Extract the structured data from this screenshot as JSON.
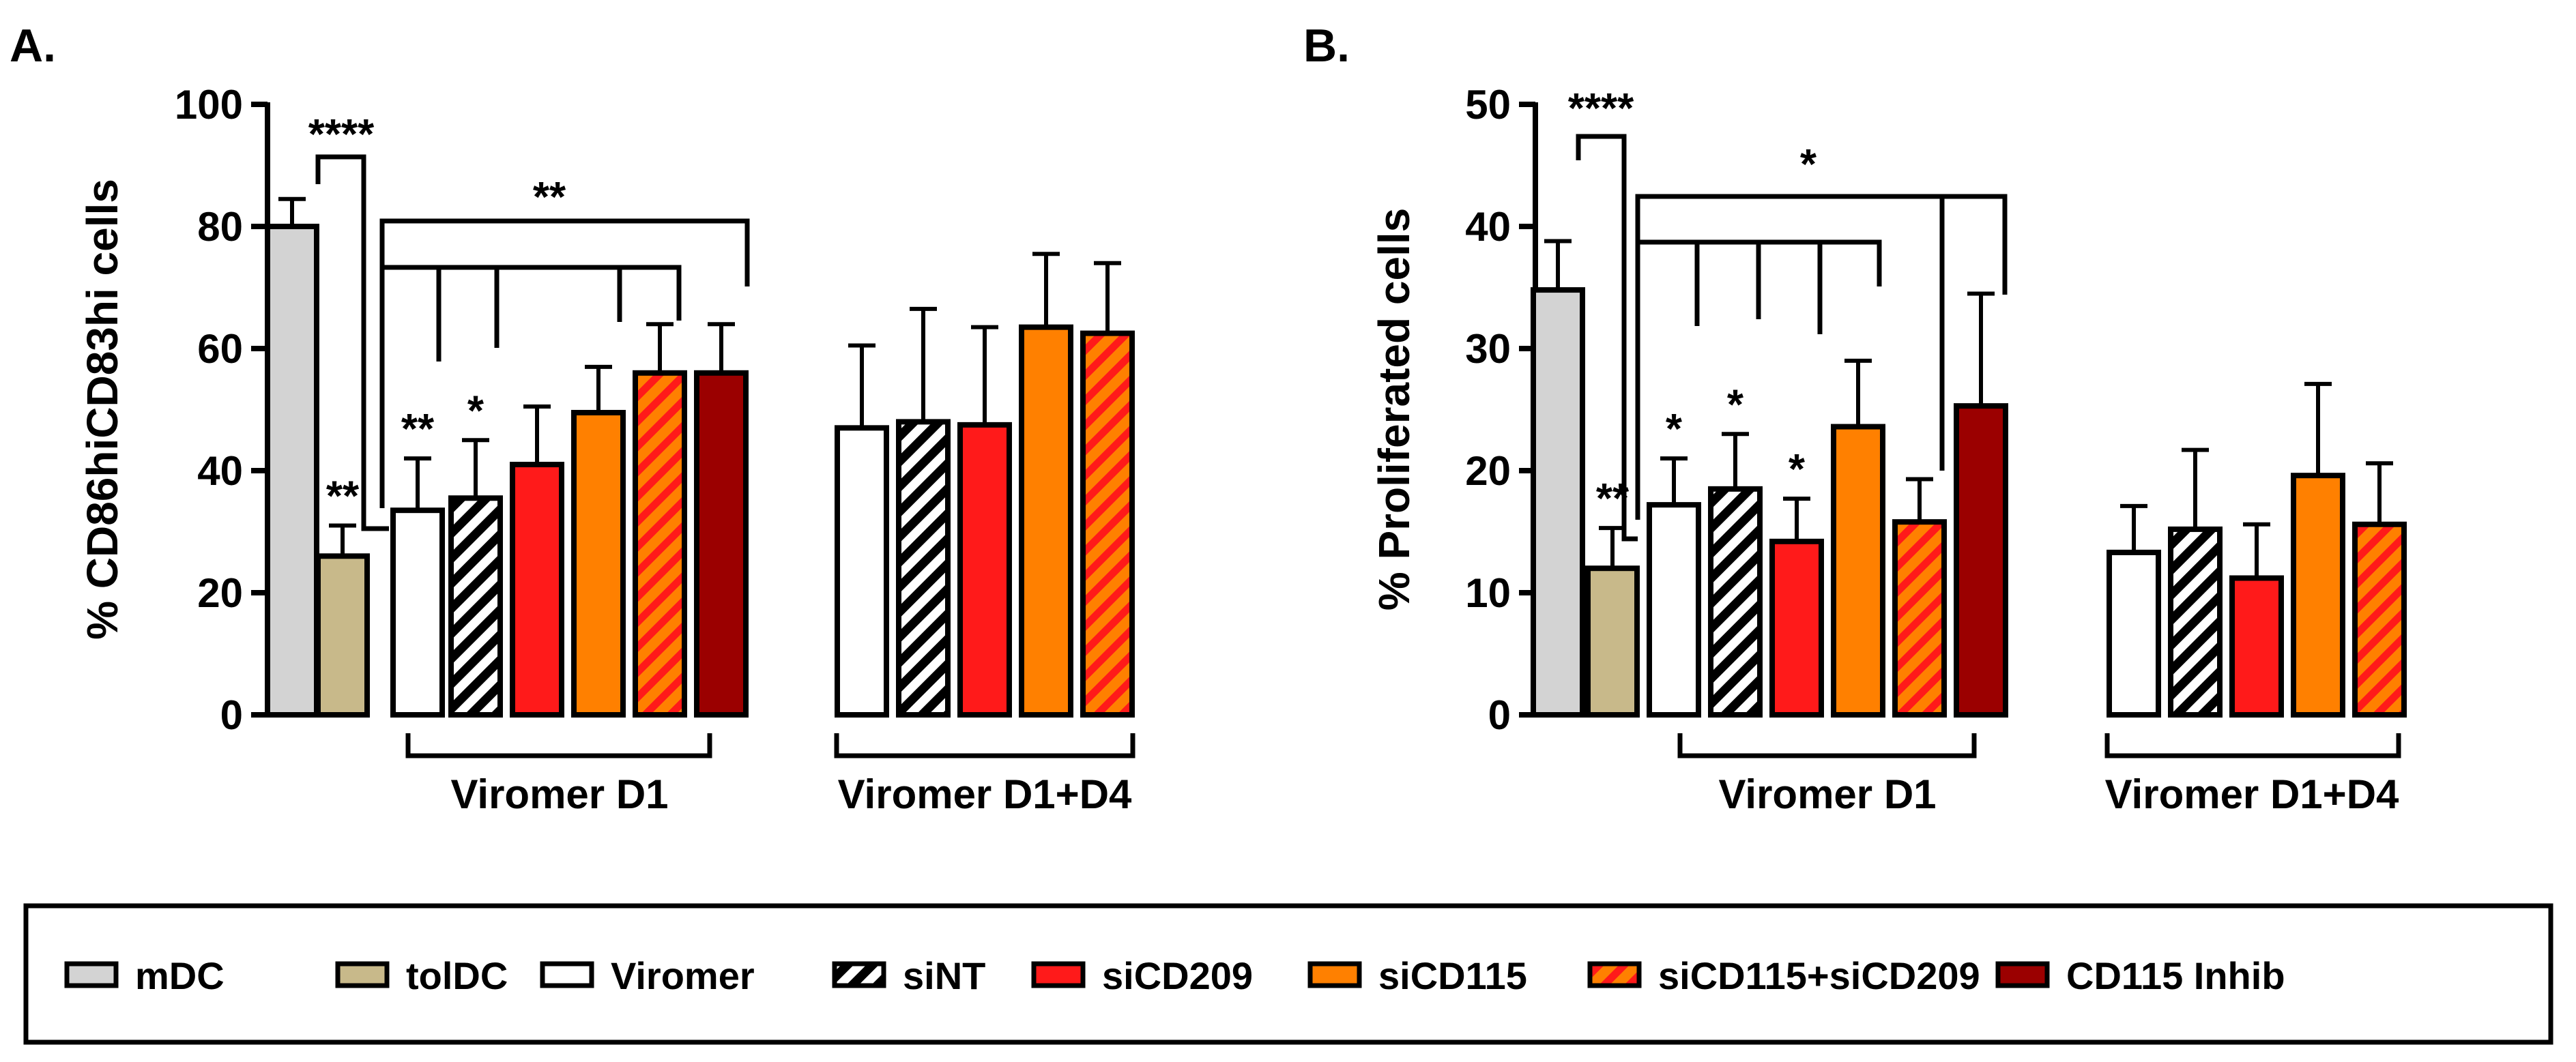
{
  "groups": [
    {
      "name": "mDC",
      "fill": "#d3d3d3",
      "pattern": "solid"
    },
    {
      "name": "tolDC",
      "fill": "#c8b98a",
      "pattern": "solid"
    },
    {
      "name": "Viromer",
      "fill": "#ffffff",
      "pattern": "solid"
    },
    {
      "name": "siNT",
      "fill": "#ffffff",
      "pattern": "hatch-black"
    },
    {
      "name": "siCD209",
      "fill": "#ff1a1a",
      "pattern": "solid"
    },
    {
      "name": "siCD115",
      "fill": "#ff8000",
      "pattern": "solid"
    },
    {
      "name": "siCD115+siCD209",
      "fill": "#ff8000",
      "pattern": "hatch-red"
    },
    {
      "name": "CD115 Inhib",
      "fill": "#9b0000",
      "pattern": "solid"
    }
  ],
  "chart_data": [
    {
      "type": "bar",
      "panel": "A.",
      "ylabel": "% CD86hiCD83hi cells",
      "ylim": [
        0,
        100
      ],
      "yticks": [
        "0",
        "20",
        "40",
        "60",
        "80",
        "100"
      ],
      "bars": [
        {
          "group": 0,
          "value": 80,
          "error": 4.5
        },
        {
          "group": 1,
          "value": 26,
          "error": 5,
          "sig": "**"
        },
        {
          "group": 2,
          "value": 33.5,
          "error": 8.5,
          "sig": "**"
        },
        {
          "group": 3,
          "value": 35.5,
          "error": 9.5,
          "sig": "*"
        },
        {
          "group": 4,
          "value": 41,
          "error": 9.5
        },
        {
          "group": 5,
          "value": 49.5,
          "error": 7.5
        },
        {
          "group": 6,
          "value": 56,
          "error": 8
        },
        {
          "group": 7,
          "value": 56,
          "error": 8
        },
        {
          "group": 2,
          "value": 47,
          "error": 13.5
        },
        {
          "group": 3,
          "value": 48,
          "error": 18.5
        },
        {
          "group": 4,
          "value": 47.5,
          "error": 16
        },
        {
          "group": 5,
          "value": 63.5,
          "error": 12
        },
        {
          "group": 6,
          "value": 62.5,
          "error": 11.5
        }
      ],
      "brackets": [
        {
          "label": "****"
        },
        {
          "label": "**"
        }
      ],
      "category_labels": [
        "Viromer D1",
        "Viromer D1+D4"
      ]
    },
    {
      "type": "bar",
      "panel": "B.",
      "ylabel": "% Proliferated cells",
      "ylim": [
        0,
        50
      ],
      "yticks": [
        "0",
        "10",
        "20",
        "30",
        "40",
        "50"
      ],
      "bars": [
        {
          "group": 0,
          "value": 34.8,
          "error": 4
        },
        {
          "group": 1,
          "value": 12,
          "error": 3.3,
          "sig": "**"
        },
        {
          "group": 2,
          "value": 17.2,
          "error": 3.8,
          "sig": "*"
        },
        {
          "group": 3,
          "value": 18.5,
          "error": 4.5,
          "sig": "*"
        },
        {
          "group": 4,
          "value": 14.2,
          "error": 3.5,
          "sig": "*"
        },
        {
          "group": 5,
          "value": 23.6,
          "error": 5.4
        },
        {
          "group": 6,
          "value": 15.8,
          "error": 3.5
        },
        {
          "group": 7,
          "value": 25.3,
          "error": 9.2
        },
        {
          "group": 2,
          "value": 13.3,
          "error": 3.8
        },
        {
          "group": 3,
          "value": 15.2,
          "error": 6.5
        },
        {
          "group": 4,
          "value": 11.2,
          "error": 4.4
        },
        {
          "group": 5,
          "value": 19.6,
          "error": 7.5
        },
        {
          "group": 6,
          "value": 15.6,
          "error": 5
        }
      ],
      "brackets": [
        {
          "label": "****"
        },
        {
          "label": "*"
        }
      ],
      "category_labels": [
        "Viromer D1",
        "Viromer D1+D4"
      ]
    }
  ]
}
